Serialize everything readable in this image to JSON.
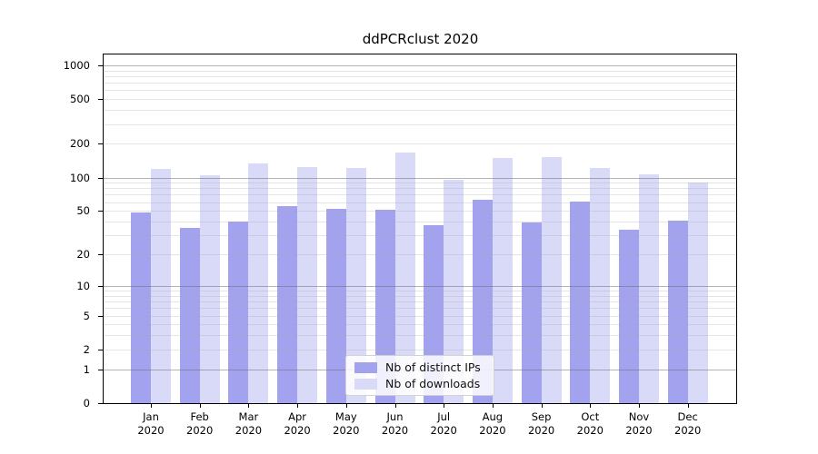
{
  "chart_data": {
    "type": "bar",
    "title": "ddPCRclust 2020",
    "categories": [
      "Jan",
      "Feb",
      "Mar",
      "Apr",
      "May",
      "Jun",
      "Jul",
      "Aug",
      "Sep",
      "Oct",
      "Nov",
      "Dec"
    ],
    "year_label": "2020",
    "series": [
      {
        "name": "Nb of distinct IPs",
        "color": "#a2a2ef",
        "values": [
          48,
          35,
          40,
          55,
          52,
          51,
          37,
          63,
          39,
          61,
          34,
          41
        ]
      },
      {
        "name": "Nb of downloads",
        "color": "#d9d9f8",
        "values": [
          120,
          104,
          134,
          125,
          122,
          166,
          95,
          149,
          152,
          121,
          107,
          90
        ]
      }
    ],
    "yscale": "log1p",
    "yticks": [
      0,
      1,
      2,
      5,
      10,
      20,
      50,
      100,
      200,
      500,
      1000
    ],
    "ylim": [
      0,
      1270
    ],
    "xlabel": "",
    "ylabel": "",
    "grid": {
      "orientation": "horizontal",
      "minor_color": "#e6e6e6",
      "major_color": "#a6a6a6"
    },
    "legend": {
      "position": "lower center",
      "entries": [
        "Nb of distinct IPs",
        "Nb of downloads"
      ]
    },
    "axis_color": "#000000",
    "background_color": "#ffffff"
  }
}
